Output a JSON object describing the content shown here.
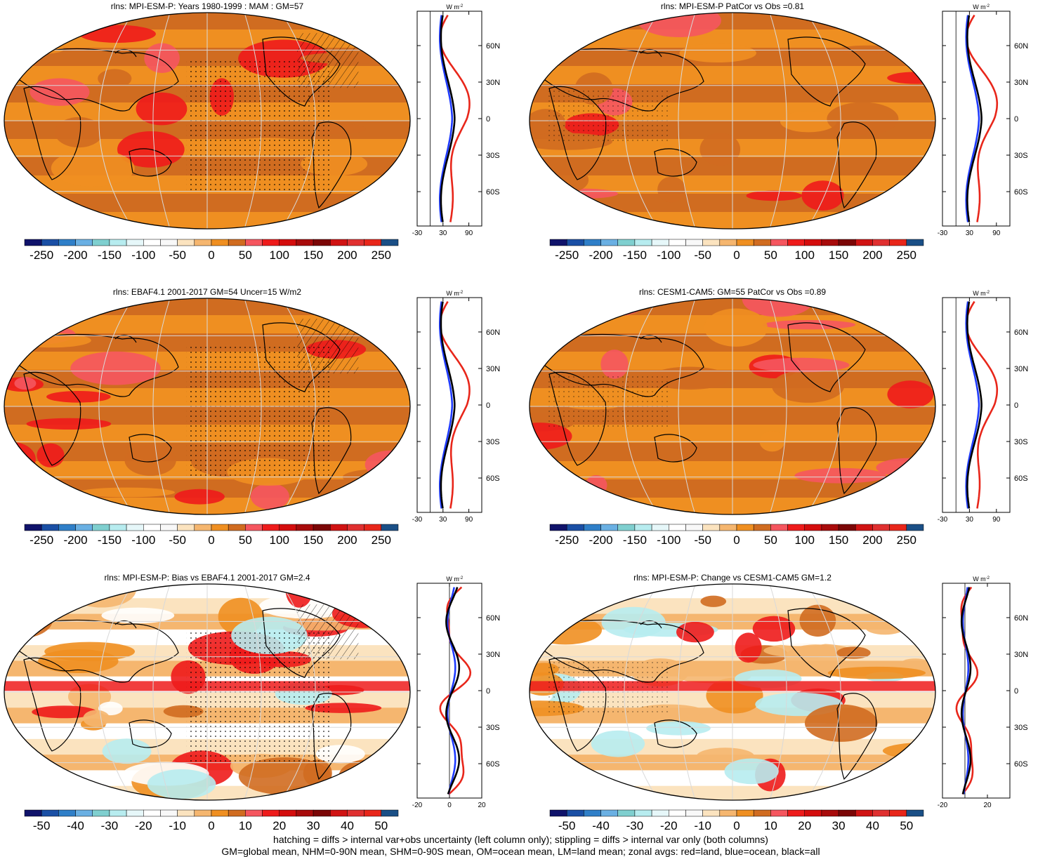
{
  "colors": {
    "land_line": "#e8261a",
    "ocean_line": "#1f3bff",
    "all_line": "#000000",
    "grid": "#d9d9d9"
  },
  "palette_abs": [
    "#10136b",
    "#1a4fa5",
    "#2f7fc8",
    "#6ab0e3",
    "#7fcfcf",
    "#b7ecef",
    "#e6f7f9",
    "#ffffff",
    "#f8f8f8",
    "#fbe3bf",
    "#f5b66f",
    "#ef8f21",
    "#d06c20",
    "#f5565f",
    "#ee1b1b",
    "#d40d0d",
    "#a80b0b",
    "#7b0606",
    "#d01313",
    "#e03030",
    "#e8261a",
    "#1a4f86"
  ],
  "panels": [
    {
      "id": "p1",
      "title": "rlns: MPI-ESM-P: Years 1980-1999 : MAM : GM=57",
      "colorbar_labels": [
        "-250",
        "-200",
        "-150",
        "-100",
        "-50",
        "0",
        "50",
        "100",
        "150",
        "200",
        "250"
      ],
      "zonal": {
        "unit": "W m",
        "unit_sup": "-2",
        "xlim": [
          -30,
          120
        ],
        "xticks": [
          "-30",
          "30",
          "90"
        ],
        "yticks": [
          "60N",
          "30N",
          "0",
          "30S",
          "60S"
        ]
      }
    },
    {
      "id": "p2",
      "title": "rlns: MPI-ESM-P PatCor vs Obs =0.81",
      "colorbar_labels": [
        "-250",
        "-200",
        "-150",
        "-100",
        "-50",
        "0",
        "50",
        "100",
        "150",
        "200",
        "250"
      ],
      "zonal": {
        "unit": "W m",
        "unit_sup": "-2",
        "xlim": [
          -30,
          120
        ],
        "xticks": [
          "-30",
          "30",
          "90"
        ],
        "yticks": [
          "60N",
          "30N",
          "0",
          "30S",
          "60S"
        ]
      }
    },
    {
      "id": "p3",
      "title": "rlns: EBAF4.1 2001-2017 GM=54 Uncer=15 W/m2",
      "colorbar_labels": [
        "-250",
        "-200",
        "-150",
        "-100",
        "-50",
        "0",
        "50",
        "100",
        "150",
        "200",
        "250"
      ],
      "zonal": {
        "unit": "W m",
        "unit_sup": "-2",
        "xlim": [
          -30,
          120
        ],
        "xticks": [
          "-30",
          "30",
          "90"
        ],
        "yticks": [
          "60N",
          "30N",
          "0",
          "30S",
          "60S"
        ]
      }
    },
    {
      "id": "p4",
      "title": "rlns: CESM1-CAM5: GM=55 PatCor vs Obs =0.89",
      "colorbar_labels": [
        "-250",
        "-200",
        "-150",
        "-100",
        "-50",
        "0",
        "50",
        "100",
        "150",
        "200",
        "250"
      ],
      "zonal": {
        "unit": "W m",
        "unit_sup": "-2",
        "xlim": [
          -30,
          120
        ],
        "xticks": [
          "-30",
          "30",
          "90"
        ],
        "yticks": [
          "60N",
          "30N",
          "0",
          "30S",
          "60S"
        ]
      }
    },
    {
      "id": "p5",
      "title": "rlns: MPI-ESM-P: Bias vs EBAF4.1 2001-2017 GM=2.4",
      "colorbar_labels": [
        "-50",
        "-40",
        "-30",
        "-20",
        "-10",
        "0",
        "10",
        "20",
        "30",
        "40",
        "50"
      ],
      "zonal": {
        "unit": "W m",
        "unit_sup": "-2",
        "xlim": [
          -20,
          20
        ],
        "xticks": [
          "-20",
          "0",
          "20"
        ],
        "yticks": [
          "60N",
          "30N",
          "0",
          "30S",
          "60S"
        ]
      }
    },
    {
      "id": "p6",
      "title": "rlns: MPI-ESM-P: Change vs CESM1-CAM5 GM=1.2",
      "colorbar_labels": [
        "-50",
        "-40",
        "-30",
        "-20",
        "-10",
        "0",
        "10",
        "20",
        "30",
        "40",
        "50"
      ],
      "zonal": {
        "unit": "W m",
        "unit_sup": "-2",
        "xlim": [
          -20,
          40
        ],
        "xticks": [
          "-20",
          "20"
        ],
        "yticks": [
          "60N",
          "30N",
          "0",
          "30S",
          "60S"
        ]
      }
    }
  ],
  "footer": {
    "line1": "hatching = diffs > internal var+obs uncertainty (left column only); stippling = diffs > internal var only (both columns)",
    "line2": "GM=global mean, NHM=0-90N mean, SHM=0-90S mean, OM=ocean mean, LM=land mean; zonal avgs: red=land, blue=ocean, black=all"
  }
}
